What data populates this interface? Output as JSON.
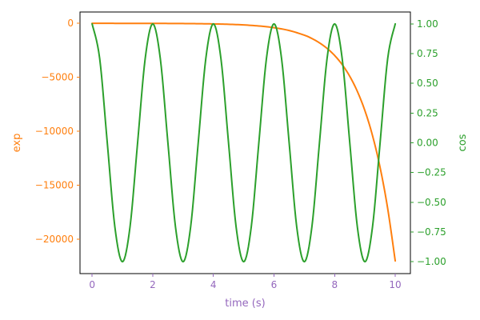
{
  "chart_data": {
    "type": "line",
    "title": "",
    "xlabel": "time (s)",
    "y_left_label": "exp",
    "y_right_label": "cos",
    "xlim": [
      -0.4,
      10.5
    ],
    "y_left_lim": [
      -23200,
      1050
    ],
    "y_right_lim": [
      -1.1,
      1.1
    ],
    "x_ticks": [
      0,
      2,
      4,
      6,
      8,
      10
    ],
    "x_tick_labels": [
      "0",
      "2",
      "4",
      "6",
      "8",
      "10"
    ],
    "y_left_ticks": [
      0,
      -5000,
      -10000,
      -15000,
      -20000
    ],
    "y_left_tick_labels": [
      "0",
      "−5000",
      "−10000",
      "−15000",
      "−20000"
    ],
    "y_right_ticks": [
      1.0,
      0.75,
      0.5,
      0.25,
      0.0,
      -0.25,
      -0.5,
      -0.75,
      -1.0
    ],
    "y_right_tick_labels": [
      "1.00",
      "0.75",
      "0.50",
      "0.25",
      "0.00",
      "−0.25",
      "−0.50",
      "−0.75",
      "−1.00"
    ],
    "grid": false,
    "legend": "none",
    "colors": {
      "x_axis": "#9467bd",
      "left_axis": "#ff7f0e",
      "right_axis": "#2ca02c",
      "spine": "#000000"
    },
    "series": [
      {
        "axis": "left",
        "color": "#ff7f0e",
        "x": [
          0,
          0.5,
          1,
          1.5,
          2,
          2.5,
          3,
          3.5,
          4,
          4.5,
          5,
          5.5,
          6,
          6.5,
          7,
          7.25,
          7.5,
          7.75,
          8,
          8.25,
          8.5,
          8.75,
          9,
          9.25,
          9.5,
          9.75,
          10
        ],
        "values": [
          -1,
          -1.6,
          -2.7,
          -4.5,
          -7.4,
          -12.2,
          -20.1,
          -33.1,
          -54.6,
          -90,
          -148,
          -245,
          -403,
          -665,
          -1097,
          -1408,
          -1808,
          -2321,
          -2981,
          -3827,
          -4915,
          -6311,
          -8103,
          -10405,
          -13360,
          -17154,
          -22026
        ]
      },
      {
        "axis": "right",
        "color": "#2ca02c",
        "x": [
          0,
          0.25,
          0.5,
          0.75,
          1,
          1.25,
          1.5,
          1.75,
          2,
          2.25,
          2.5,
          2.75,
          3,
          3.25,
          3.5,
          3.75,
          4,
          4.25,
          4.5,
          4.75,
          5,
          5.25,
          5.5,
          5.75,
          6,
          6.25,
          6.5,
          6.75,
          7,
          7.25,
          7.5,
          7.75,
          8,
          8.25,
          8.5,
          8.75,
          9,
          9.25,
          9.5,
          9.75,
          10
        ],
        "values": [
          1.0,
          0.707,
          0.0,
          -0.707,
          -1.0,
          -0.707,
          0.0,
          0.707,
          1.0,
          0.707,
          0.0,
          -0.707,
          -1.0,
          -0.707,
          0.0,
          0.707,
          1.0,
          0.707,
          0.0,
          -0.707,
          -1.0,
          -0.707,
          0.0,
          0.707,
          1.0,
          0.707,
          0.0,
          -0.707,
          -1.0,
          -0.707,
          0.0,
          0.707,
          1.0,
          0.707,
          0.0,
          -0.707,
          -1.0,
          -0.707,
          0.0,
          0.707,
          1.0
        ]
      }
    ]
  }
}
